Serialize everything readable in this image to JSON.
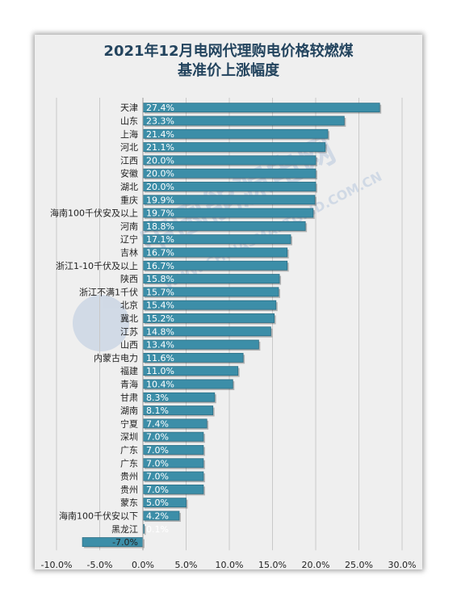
{
  "chart_data": {
    "type": "bar",
    "orientation": "horizontal",
    "title_lines": [
      "2021年12月电网代理购电价格较燃煤",
      "基准价上涨幅度"
    ],
    "categories": [
      "天津",
      "山东",
      "上海",
      "河北",
      "江西",
      "安徽",
      "湖北",
      "重庆",
      "海南100千伏安及以上",
      "河南",
      "辽宁",
      "吉林",
      "浙江1-10千伏及以上",
      "陕西",
      "浙江不满1千伏",
      "北京",
      "冀北",
      "江苏",
      "山西",
      "内蒙古电力",
      "福建",
      "青海",
      "甘肃",
      "湖南",
      "宁夏",
      "深圳",
      "广东",
      "广东",
      "贵州",
      "贵州",
      "蒙东",
      "海南100千伏安以下",
      "黑龙江",
      "-7.0%"
    ],
    "values": [
      27.4,
      23.3,
      21.4,
      21.1,
      20.0,
      20.0,
      20.0,
      19.9,
      19.7,
      18.8,
      17.1,
      16.7,
      16.7,
      15.8,
      15.7,
      15.4,
      15.2,
      14.8,
      13.4,
      11.6,
      11.0,
      10.4,
      8.3,
      8.1,
      7.4,
      7.0,
      7.0,
      7.0,
      7.0,
      7.0,
      5.0,
      4.2,
      0.1,
      -7.0
    ],
    "value_labels": [
      "27.4%",
      "23.3%",
      "21.4%",
      "21.1%",
      "20.0%",
      "20.0%",
      "20.0%",
      "19.9%",
      "19.7%",
      "18.8%",
      "17.1%",
      "16.7%",
      "16.7%",
      "15.8%",
      "15.7%",
      "15.4%",
      "15.2%",
      "14.8%",
      "13.4%",
      "11.6%",
      "11.0%",
      "10.4%",
      "8.3%",
      "8.1%",
      "7.4%",
      "7.0%",
      "7.0%",
      "7.0%",
      "7.0%",
      "7.0%",
      "5.0%",
      "4.2%",
      "0.1%",
      ""
    ],
    "x_ticks": [
      "-10.0%",
      "-5.0%",
      "0.0%",
      "5.0%",
      "10.0%",
      "15.0%",
      "20.0%",
      "25.0%",
      "30.0%"
    ],
    "xlim": [
      -10,
      30
    ],
    "tick_step": 5,
    "grid": true,
    "bar_color": "#3c8ea8",
    "bar_edge_color": "#2a6e85"
  },
  "watermark": {
    "text": "中国能源电网",
    "url": "WWW.CHINASMARTGRID.COM.CN"
  }
}
